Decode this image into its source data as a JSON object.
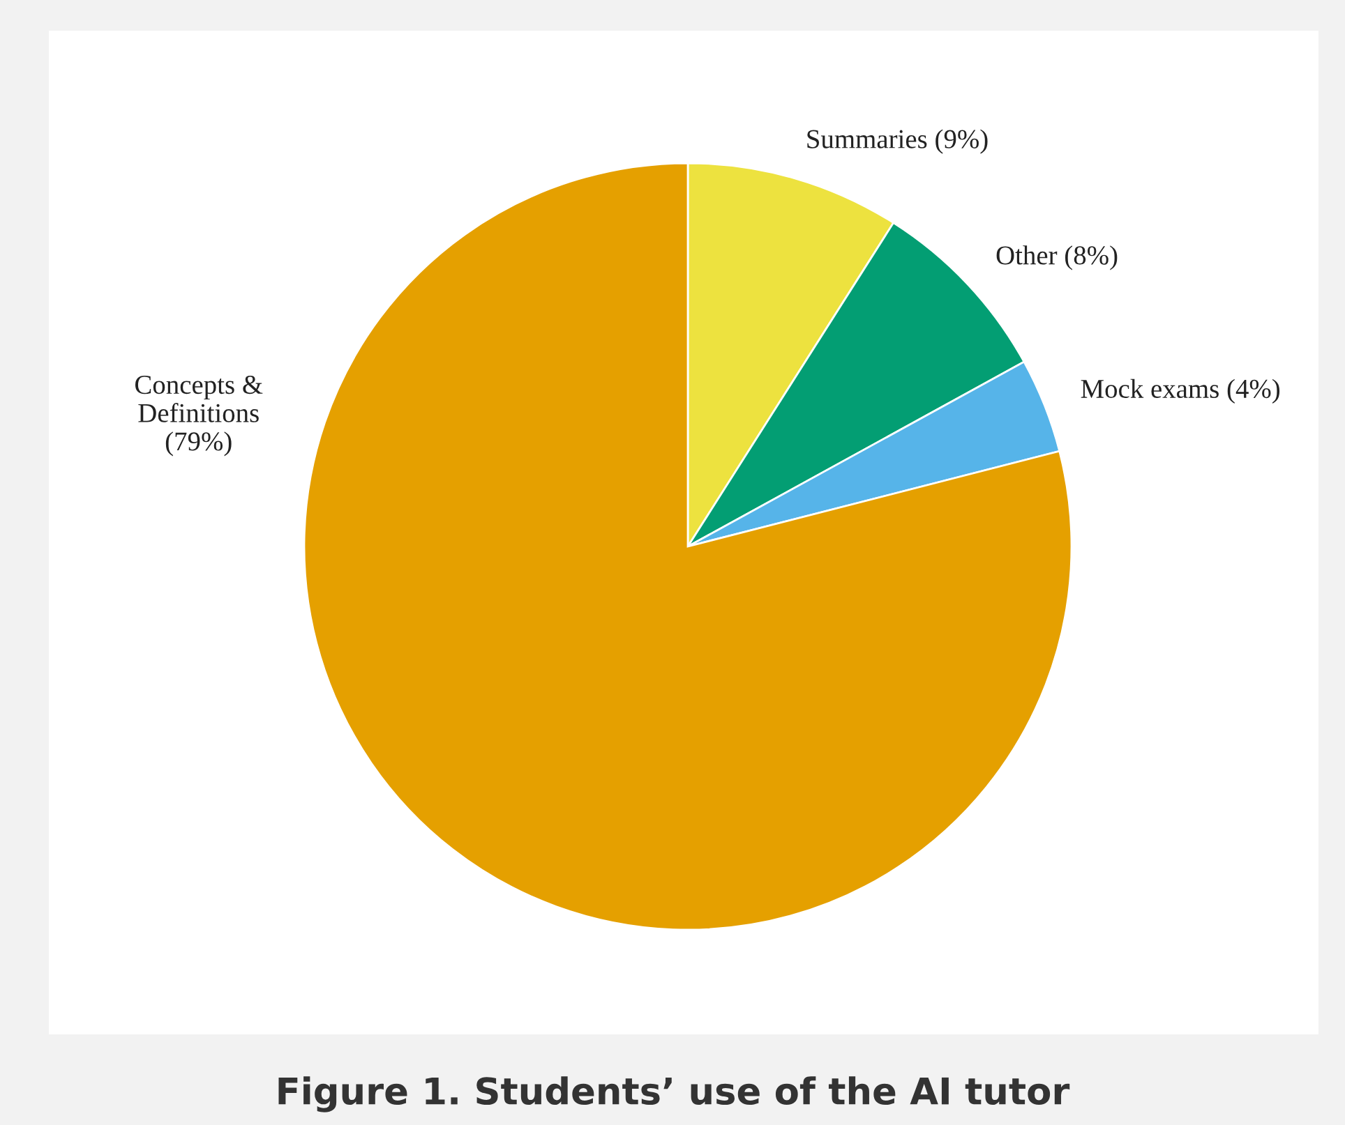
{
  "chart_data": {
    "type": "pie",
    "title": "Figure 1. Students’ use of the AI tutor",
    "categories": [
      "Summaries (9%)",
      "Other (8%)",
      "Mock exams (4%)",
      "Concepts &\nDefinitions\n(79%)"
    ],
    "values": [
      9,
      8,
      4,
      79
    ],
    "colors": [
      "#ede23f",
      "#039e73",
      "#56b4e9",
      "#e5a000"
    ]
  }
}
